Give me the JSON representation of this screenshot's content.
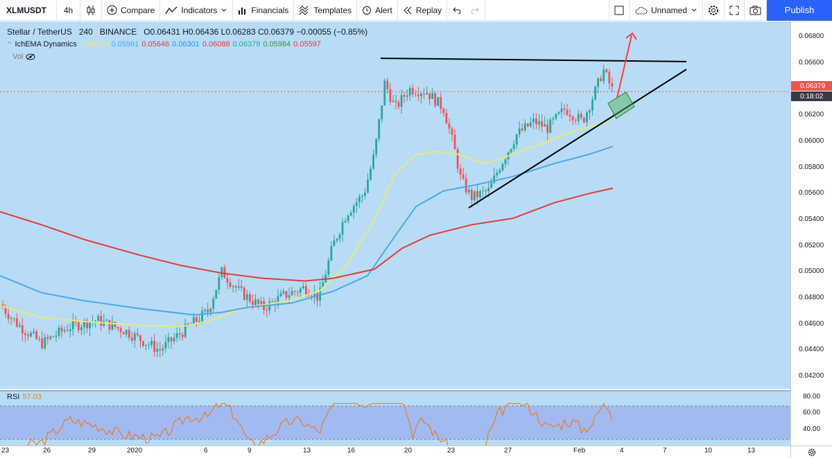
{
  "toolbar": {
    "symbol": "XLMUSDT",
    "interval": "4h",
    "compare": "Compare",
    "indicators": "Indicators",
    "financials": "Financials",
    "templates": "Templates",
    "alert": "Alert",
    "replay": "Replay",
    "layout_name": "Unnamed",
    "publish": "Publish"
  },
  "legend": {
    "pair": "Stellar / TetherUS",
    "timeframe": "240",
    "exchange": "BINANCE",
    "ohlc": "O0.06431 H0.06436 L0.06283 C0.06379 −0.00055 (−0.85%)",
    "indicator": "IchEMA Dynamics",
    "indicator_values": [
      {
        "value": "0.06138",
        "color": "#e8e87a"
      },
      {
        "value": "0.05961",
        "color": "#4aa8e8"
      },
      {
        "value": "0.05646",
        "color": "#e53935"
      },
      {
        "value": "0.06301",
        "color": "#2196f3"
      },
      {
        "value": "0.06088",
        "color": "#e53935"
      },
      {
        "value": "0.06379",
        "color": "#26a69a"
      },
      {
        "value": "0.05984",
        "color": "#388e3c"
      },
      {
        "value": "0.05597",
        "color": "#e53935"
      }
    ],
    "vol": "Vol"
  },
  "rsi": {
    "label": "RSI",
    "value": "57.03"
  },
  "price_axis": {
    "labels": [
      "0.06800",
      "0.06600",
      "0.06400",
      "0.06200",
      "0.06000",
      "0.05800",
      "0.05600",
      "0.05400",
      "0.05200",
      "0.05000",
      "0.04800",
      "0.04600",
      "0.04400",
      "0.04200"
    ],
    "last_price": "0.06379",
    "countdown": "0:18:02"
  },
  "rsi_axis": {
    "labels": [
      "80.00",
      "60.00",
      "40.00"
    ]
  },
  "time_axis": {
    "labels": [
      "23",
      "26",
      "29",
      "2020",
      "6",
      "9",
      "13",
      "16",
      "20",
      "23",
      "27",
      "Feb",
      "4",
      "7",
      "10",
      "13"
    ]
  },
  "colors": {
    "up": "#27a69a",
    "down": "#ef5350",
    "ema_yellow": "#e8e87a",
    "ema_blue": "#4aa8e8",
    "ema_red": "#e53935",
    "rsi": "#e67e22"
  }
}
